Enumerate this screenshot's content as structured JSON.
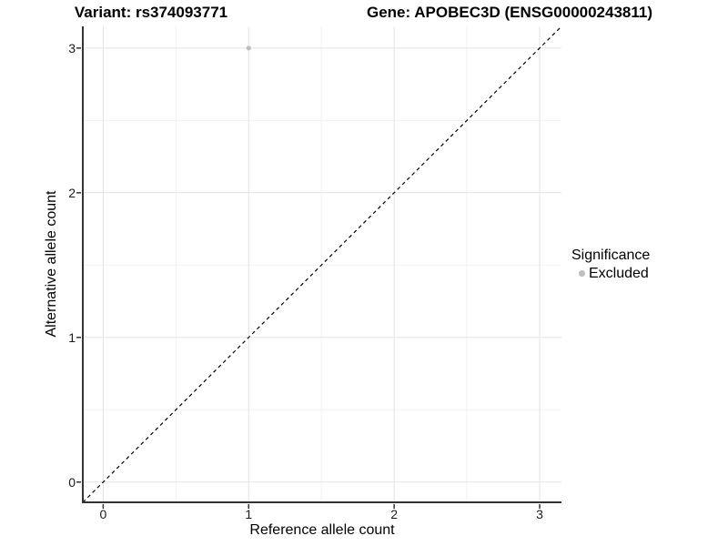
{
  "chart_data": {
    "type": "scatter",
    "titles": [
      {
        "id": "variant",
        "text": "Variant: rs374093771"
      },
      {
        "id": "gene",
        "text": "Gene: APOBEC3D (ENSG00000243811)"
      }
    ],
    "xlabel": "Reference allele count",
    "ylabel": "Alternative allele count",
    "xlim": [
      -0.14,
      3.15
    ],
    "ylim": [
      -0.14,
      3.15
    ],
    "x_ticks": [
      0,
      1,
      2,
      3
    ],
    "y_ticks": [
      0,
      1,
      2,
      3
    ],
    "x_minor_ticks": [
      0.5,
      1.5,
      2.5
    ],
    "y_minor_ticks": [
      0.5,
      1.5,
      2.5
    ],
    "grid": "major-and-minor",
    "series": [
      {
        "name": "Excluded",
        "color": "#bebebe",
        "points": [
          {
            "x": 1,
            "y": 3
          }
        ]
      }
    ],
    "reference_line": {
      "kind": "identity",
      "equation": "y = x",
      "style": "dashed",
      "color": "#000000"
    },
    "legend": {
      "title": "Significance",
      "position": "right",
      "items": [
        {
          "label": "Excluded",
          "color": "#bebebe"
        }
      ]
    }
  },
  "style": {
    "axis_line_color": "#333333",
    "tick_mark_color": "#333333",
    "grid_major_color": "#e3e3e3",
    "grid_minor_color": "#f1f1f1",
    "point_radius": 2.6
  }
}
